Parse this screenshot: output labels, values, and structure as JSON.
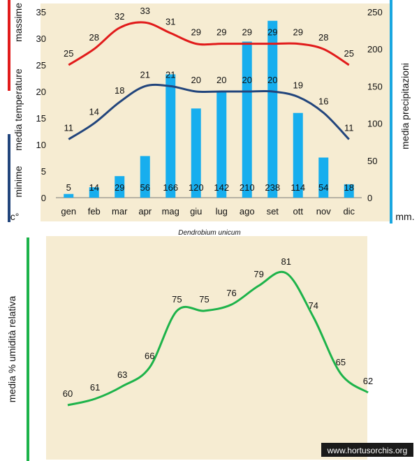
{
  "colors": {
    "panel": "#f6ecd2",
    "max_line": "#e11b1b",
    "min_line": "#22457c",
    "bars": "#17aeee",
    "humidity": "#1db34a",
    "right_axis": "#1aa7e0",
    "watermark_bg": "#1a1a1a",
    "watermark_text": "#ffffff"
  },
  "labels": {
    "massime": "massime",
    "media_temperature": "media  temperature",
    "minime": "minime",
    "deg": "c°",
    "mm": "mm.",
    "media_precipitazioni": "media  precipitazioni",
    "species": "Dendrobium  unicum",
    "humidity_axis": "media  %  umidità relativa",
    "watermark": "www.hortusorchis.org"
  },
  "chart_data": [
    {
      "type": "bar",
      "title": "Dendrobium unicum",
      "categories": [
        "gen",
        "feb",
        "mar",
        "apr",
        "mag",
        "giu",
        "lug",
        "ago",
        "set",
        "ott",
        "nov",
        "dic"
      ],
      "left_axis": {
        "ylim": [
          0,
          35
        ],
        "ticks": [
          "0",
          "5",
          "10",
          "15",
          "20",
          "25",
          "30",
          "35"
        ]
      },
      "right_axis": {
        "ylim": [
          0,
          250
        ],
        "ticks": [
          "0",
          "50",
          "100",
          "150",
          "200",
          "250"
        ]
      },
      "series": [
        {
          "name": "massime",
          "kind": "line",
          "axis": "left",
          "values": [
            25,
            28,
            32,
            33,
            31,
            29,
            29,
            29,
            29,
            29,
            28,
            25
          ],
          "labels": [
            "25",
            "28",
            "32",
            "33",
            "31",
            "29",
            "29",
            "29",
            "29",
            "29",
            "28",
            "25"
          ]
        },
        {
          "name": "minime",
          "kind": "line",
          "axis": "left",
          "values": [
            11,
            14,
            18,
            21,
            21,
            20,
            20,
            20,
            20,
            19,
            16,
            11
          ],
          "labels": [
            "11",
            "14",
            "18",
            "21",
            "21",
            "20",
            "20",
            "20",
            "20",
            "19",
            "16",
            "11"
          ]
        },
        {
          "name": "media precipitazioni",
          "kind": "bar",
          "axis": "right",
          "values": [
            5,
            14,
            29,
            56,
            166,
            120,
            142,
            210,
            238,
            114,
            54,
            18
          ],
          "labels": [
            "5",
            "14",
            "29",
            "56",
            "166",
            "120",
            "142",
            "210",
            "238",
            "114",
            "54",
            "18"
          ]
        }
      ]
    },
    {
      "type": "line",
      "ylabel": "media % umidità relativa",
      "ylim": [
        55,
        85
      ],
      "series": [
        {
          "name": "media % umidità relativa",
          "values": [
            60,
            61,
            63,
            66,
            75,
            75,
            76,
            79,
            81,
            74,
            65,
            62
          ],
          "labels": [
            "60",
            "61",
            "63",
            "66",
            "75",
            "75",
            "76",
            "79",
            "81",
            "74",
            "65",
            "62"
          ]
        }
      ]
    }
  ]
}
